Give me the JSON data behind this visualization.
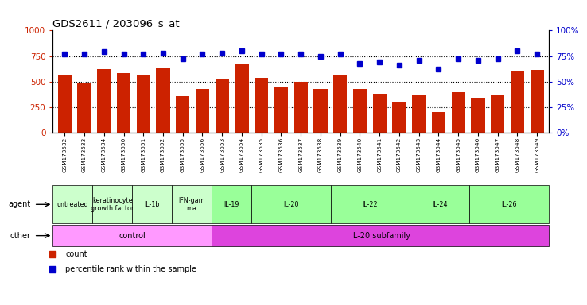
{
  "title": "GDS2611 / 203096_s_at",
  "samples": [
    "GSM173532",
    "GSM173533",
    "GSM173534",
    "GSM173550",
    "GSM173551",
    "GSM173552",
    "GSM173555",
    "GSM173556",
    "GSM173553",
    "GSM173554",
    "GSM173535",
    "GSM173536",
    "GSM173537",
    "GSM173538",
    "GSM173539",
    "GSM173540",
    "GSM173541",
    "GSM173542",
    "GSM173543",
    "GSM173544",
    "GSM173545",
    "GSM173546",
    "GSM173547",
    "GSM173548",
    "GSM173549"
  ],
  "counts": [
    560,
    490,
    625,
    585,
    565,
    630,
    355,
    430,
    520,
    665,
    535,
    440,
    500,
    430,
    560,
    430,
    380,
    300,
    375,
    200,
    395,
    340,
    375,
    610,
    615
  ],
  "percentiles": [
    77,
    77,
    79,
    77,
    77,
    78,
    72,
    77,
    78,
    80,
    77,
    77,
    77,
    75,
    77,
    68,
    69,
    66,
    71,
    62,
    72,
    71,
    72,
    80,
    77
  ],
  "bar_color": "#cc2200",
  "dot_color": "#0000cc",
  "ylim_left": [
    0,
    1000
  ],
  "ylim_right": [
    0,
    100
  ],
  "yticks_left": [
    0,
    250,
    500,
    750,
    1000
  ],
  "yticks_right": [
    0,
    25,
    50,
    75,
    100
  ],
  "ytick_labels_left": [
    "0",
    "250",
    "500",
    "750",
    "1000"
  ],
  "ytick_labels_right": [
    "0%",
    "25%",
    "50%",
    "75%",
    "100%"
  ],
  "grid_values": [
    250,
    500,
    750
  ],
  "agent_groups": [
    {
      "label": "untreated",
      "start": 0,
      "end": 2,
      "color": "#ccffcc"
    },
    {
      "label": "keratinocyte\ngrowth factor",
      "start": 2,
      "end": 4,
      "color": "#ccffcc"
    },
    {
      "label": "IL-1b",
      "start": 4,
      "end": 6,
      "color": "#ccffcc"
    },
    {
      "label": "IFN-gam\nma",
      "start": 6,
      "end": 8,
      "color": "#ccffcc"
    },
    {
      "label": "IL-19",
      "start": 8,
      "end": 10,
      "color": "#99ff99"
    },
    {
      "label": "IL-20",
      "start": 10,
      "end": 14,
      "color": "#99ff99"
    },
    {
      "label": "IL-22",
      "start": 14,
      "end": 18,
      "color": "#99ff99"
    },
    {
      "label": "IL-24",
      "start": 18,
      "end": 21,
      "color": "#99ff99"
    },
    {
      "label": "IL-26",
      "start": 21,
      "end": 25,
      "color": "#99ff99"
    }
  ],
  "other_groups": [
    {
      "label": "control",
      "start": 0,
      "end": 8,
      "color": "#ff99ff"
    },
    {
      "label": "IL-20 subfamily",
      "start": 8,
      "end": 25,
      "color": "#dd44dd"
    }
  ],
  "legend_count_color": "#cc2200",
  "legend_dot_color": "#0000cc",
  "bg_color": "#ffffff",
  "agent_row_label": "agent",
  "other_row_label": "other"
}
